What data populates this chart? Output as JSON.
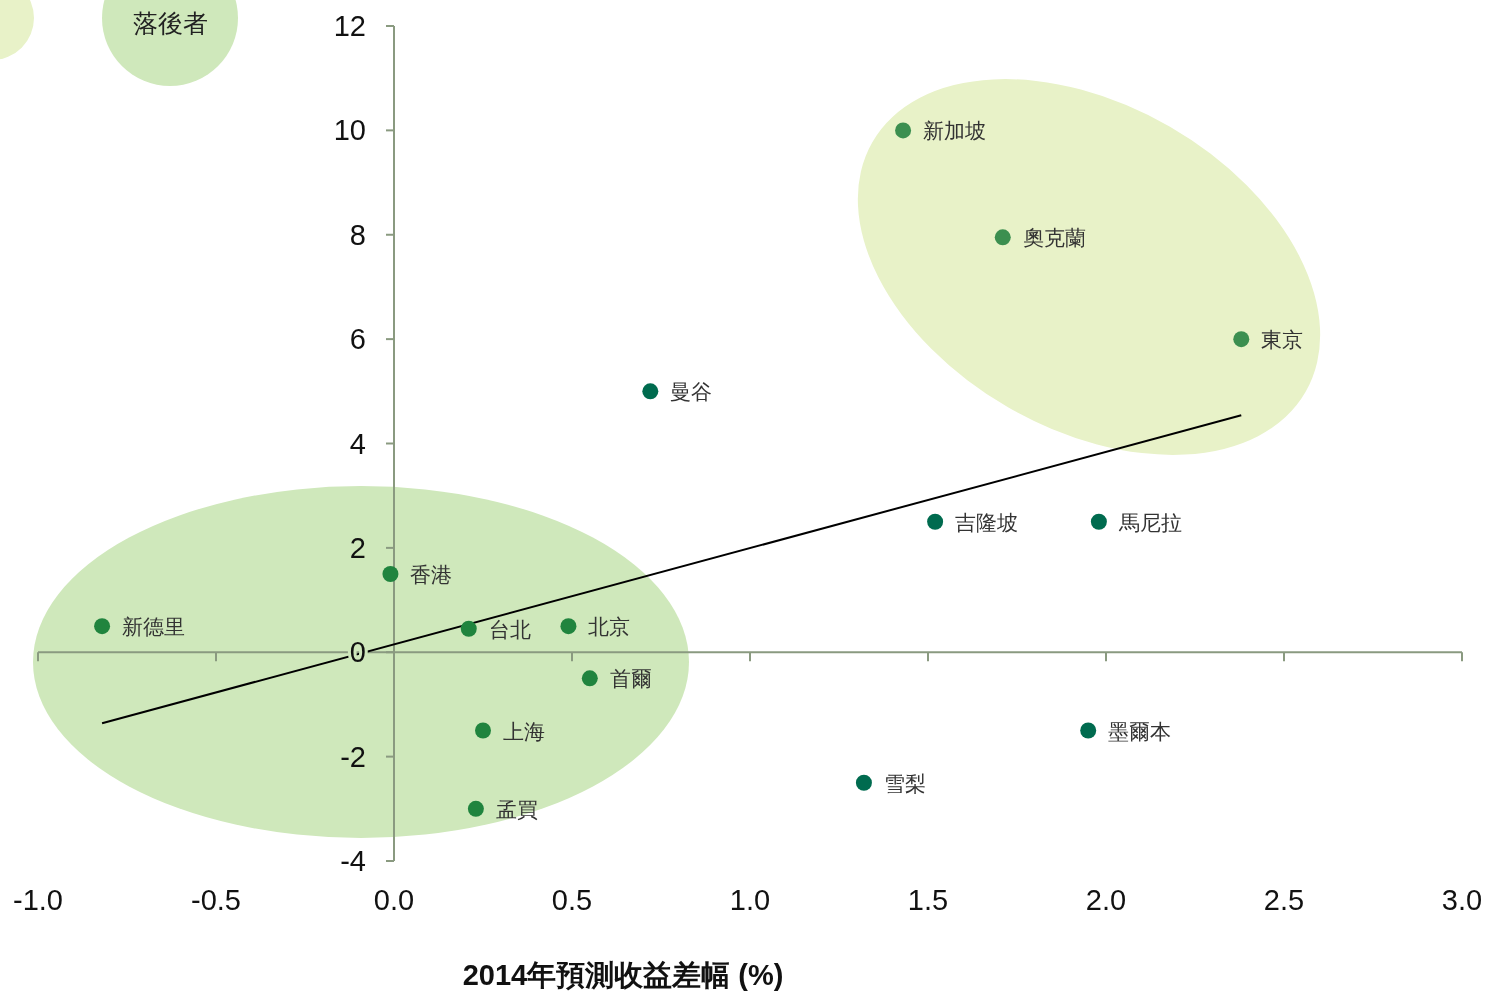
{
  "chart_data": {
    "type": "scatter",
    "xlabel": "2014年預測收益差幅 (%)",
    "xlim": [
      -1,
      3
    ],
    "xticks": [
      {
        "value": -1,
        "label": "-1.0"
      },
      {
        "value": -0.5,
        "label": "-0.5"
      },
      {
        "value": 0,
        "label": "0.0"
      },
      {
        "value": 0.5,
        "label": "0.5"
      },
      {
        "value": 1,
        "label": "1.0"
      },
      {
        "value": 1.5,
        "label": "1.5"
      },
      {
        "value": 2,
        "label": "2.0"
      },
      {
        "value": 2.5,
        "label": "2.5"
      },
      {
        "value": 3,
        "label": "3.0"
      }
    ],
    "ylim": [
      -4,
      12
    ],
    "yticks": [
      -4,
      -2,
      0,
      2,
      4,
      6,
      8,
      10,
      12
    ],
    "marker": "circle",
    "series": [
      {
        "x": [
          1.43,
          1.71,
          2.38
        ],
        "values": [
          10,
          7.95,
          6
        ],
        "color": "#3c8f50"
      },
      {
        "x": [
          -0.01,
          -0.82,
          0.21,
          0.49,
          0.55,
          0.25,
          0.23
        ],
        "values": [
          1.5,
          0.5,
          0.45,
          0.5,
          -0.5,
          -1.5,
          -3
        ],
        "color": "#20843e"
      },
      {
        "x": [
          0.72,
          1.52,
          1.98,
          1.95,
          1.32
        ],
        "values": [
          5,
          2.5,
          2.5,
          -1.5,
          -2.5
        ],
        "color": "#006b4f"
      },
      {
        "type": "line",
        "marker": "none",
        "x": [
          -0.82,
          2.38
        ],
        "values": [
          -1.36,
          4.54
        ],
        "color": "#000000"
      }
    ],
    "annotations": [
      "落後者",
      {
        "text": "新加坡",
        "x": 1.43,
        "y": 10
      },
      {
        "text": "奧克蘭",
        "x": 1.71,
        "y": 7.95
      },
      {
        "text": "東京",
        "x": 2.38,
        "y": 6
      },
      {
        "text": "曼谷",
        "x": 0.72,
        "y": 5
      },
      {
        "text": "吉隆坡",
        "x": 1.52,
        "y": 2.5
      },
      {
        "text": "馬尼拉",
        "x": 1.98,
        "y": 2.5
      },
      {
        "text": "香港",
        "x": -0.01,
        "y": 1.5
      },
      {
        "text": "新德里",
        "x": -0.82,
        "y": 0.5
      },
      {
        "text": "台北",
        "x": 0.21,
        "y": 0.45
      },
      {
        "text": "北京",
        "x": 0.49,
        "y": 0.5
      },
      {
        "text": "首爾",
        "x": 0.55,
        "y": -0.5
      },
      {
        "text": "上海",
        "x": 0.25,
        "y": -1.5
      },
      {
        "text": "孟買",
        "x": 0.23,
        "y": -3
      },
      {
        "text": "墨爾本",
        "x": 1.95,
        "y": -1.5
      },
      {
        "text": "雪梨",
        "x": 1.32,
        "y": -2.5
      }
    ]
  }
}
